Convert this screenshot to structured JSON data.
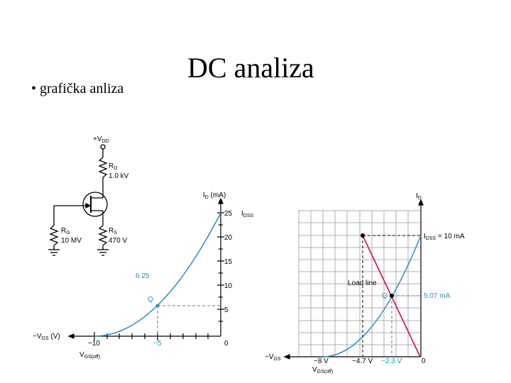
{
  "slide": {
    "title": "DC analiza",
    "bullet": "• grafička anliza"
  },
  "circuit": {
    "vdd": "+V",
    "vdd_sub": "DD",
    "rd_name": "R",
    "rd_sub": "D",
    "rd_value": "1.0 kV",
    "rg_name": "R",
    "rg_sub": "G",
    "rg_value": "10 MV",
    "rs_name": "R",
    "rs_sub": "S",
    "rs_value": "470 V"
  },
  "graph1": {
    "ylabel": "I",
    "ylabel_sub": "D",
    "ylabel_unit": " (mA)",
    "yticks": [
      "25",
      "20",
      "15",
      "10",
      "5",
      "0"
    ],
    "idss": "I",
    "idss_sub": "DSS",
    "xlabel": "−V",
    "xlabel_sub": "GS",
    "xlabel_unit": " (V)",
    "x_left": "−10",
    "x_mid": "−5",
    "vgsoff": "V",
    "vgsoff_sub": "GS(off)",
    "q_value": "6.25",
    "q_label": "Q"
  },
  "graph2": {
    "ylabel": "I",
    "ylabel_sub": "D",
    "idss_label": "I",
    "idss_sub": "DSS",
    "idss_value": " = 10 mA",
    "q_label": "Q",
    "q_current": "5.07 mA",
    "load_line": "Load line",
    "xlabel": "−V",
    "xlabel_sub": "GS",
    "x_8": "−8 V",
    "x_47": "−4.7 V",
    "x_23": "−2.3 V",
    "x_0": "0",
    "vgsoff": "V",
    "vgsoff_sub": "GS(off)"
  },
  "colors": {
    "curve": "#2a8fb8",
    "load_line": "#d01c6e",
    "grid": "#9a9a9a"
  }
}
